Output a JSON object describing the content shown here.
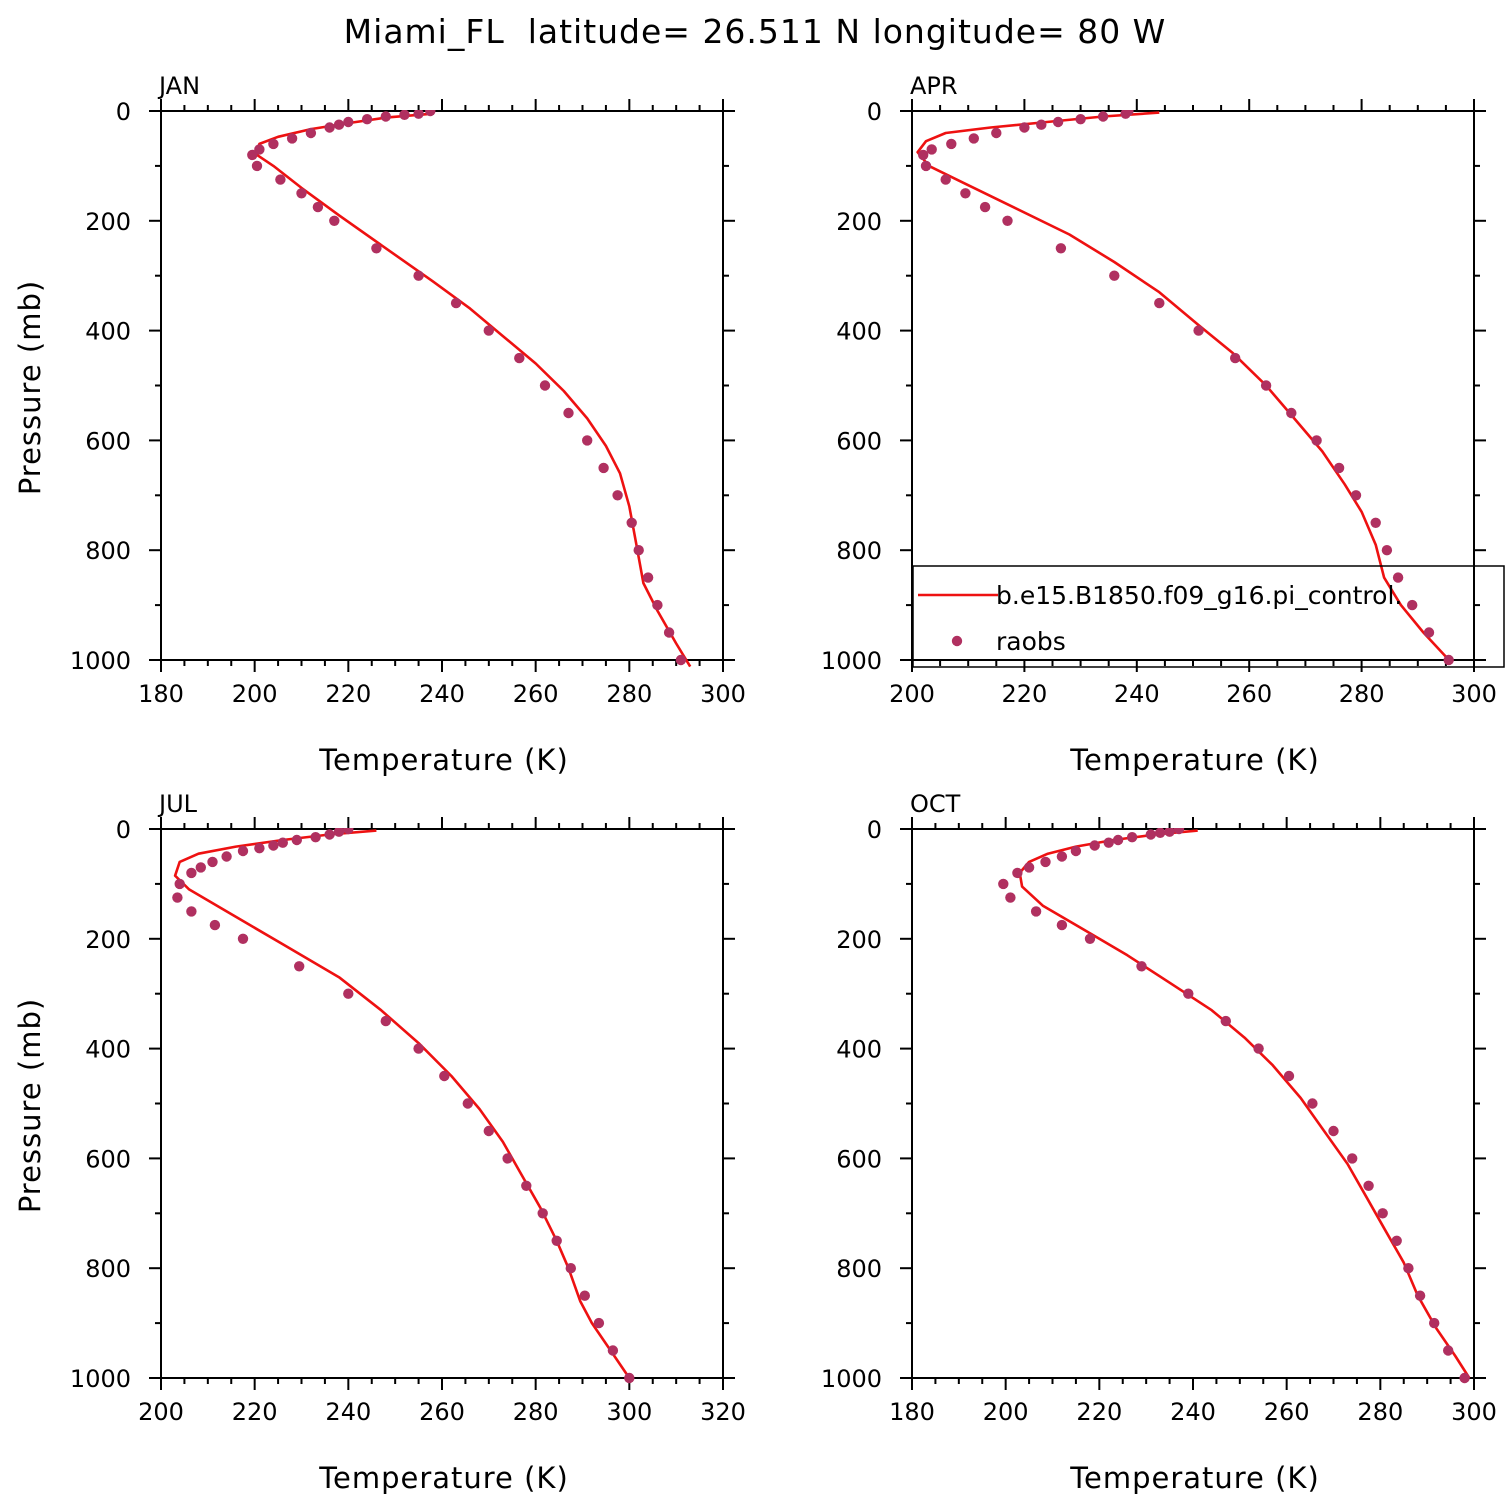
{
  "page": {
    "title": "Miami_FL  latitude= 26.511 N longitude= 80 W"
  },
  "colors": {
    "model_line": "#ee1111",
    "obs_marker": "#b03060",
    "axis": "#000000"
  },
  "legend": {
    "model_label": "b.e15.B1850.f09_g16.pi_control.",
    "obs_label": "raobs"
  },
  "chart_data": [
    {
      "type": "line",
      "panel": "JAN",
      "xlabel": "Temperature (K)",
      "ylabel": "Pressure (mb)",
      "xlim": [
        180,
        300
      ],
      "ylim": [
        1000,
        0
      ],
      "xticks": [
        180,
        200,
        220,
        240,
        260,
        280,
        300
      ],
      "yticks": [
        0,
        200,
        400,
        600,
        800,
        1000
      ],
      "grid": false,
      "series": [
        {
          "name": "b.e15.B1850.f09_g16.pi_control.",
          "kind": "line",
          "points": [
            [
              238,
              5
            ],
            [
              228,
              12
            ],
            [
              220,
              22
            ],
            [
              212,
              33
            ],
            [
              205,
              47
            ],
            [
              201,
              60
            ],
            [
              200.5,
              80
            ],
            [
              204,
              100
            ],
            [
              210,
              140
            ],
            [
              218,
              190
            ],
            [
              228,
              250
            ],
            [
              238,
              310
            ],
            [
              246,
              360
            ],
            [
              253,
              410
            ],
            [
              260,
              460
            ],
            [
              266,
              510
            ],
            [
              271,
              560
            ],
            [
              275,
              610
            ],
            [
              278,
              660
            ],
            [
              280,
              720
            ],
            [
              281.5,
              790
            ],
            [
              283,
              860
            ],
            [
              286,
              910
            ],
            [
              290,
              970
            ],
            [
              293,
              1012
            ]
          ]
        },
        {
          "name": "raobs",
          "kind": "scatter",
          "points": [
            [
              237.5,
              0
            ],
            [
              235,
              5
            ],
            [
              232,
              7
            ],
            [
              228,
              10
            ],
            [
              224,
              15
            ],
            [
              220,
              20
            ],
            [
              218,
              25
            ],
            [
              216,
              30
            ],
            [
              212,
              40
            ],
            [
              208,
              50
            ],
            [
              204,
              60
            ],
            [
              201,
              70
            ],
            [
              199.5,
              80
            ],
            [
              200.5,
              100
            ],
            [
              205.5,
              125
            ],
            [
              210,
              150
            ],
            [
              213.5,
              175
            ],
            [
              217,
              200
            ],
            [
              226,
              250
            ],
            [
              235,
              300
            ],
            [
              243,
              350
            ],
            [
              250,
              400
            ],
            [
              256.5,
              450
            ],
            [
              262,
              500
            ],
            [
              267,
              550
            ],
            [
              271,
              600
            ],
            [
              274.5,
              650
            ],
            [
              277.5,
              700
            ],
            [
              280.5,
              750
            ],
            [
              282,
              800
            ],
            [
              284,
              850
            ],
            [
              286,
              900
            ],
            [
              288.5,
              950
            ],
            [
              291,
              1000
            ]
          ]
        }
      ]
    },
    {
      "type": "line",
      "panel": "APR",
      "xlabel": "Temperature (K)",
      "ylabel": "",
      "xlim": [
        200,
        300
      ],
      "ylim": [
        1000,
        0
      ],
      "xticks": [
        200,
        220,
        240,
        260,
        280,
        300
      ],
      "yticks": [
        0,
        200,
        400,
        600,
        800,
        1000
      ],
      "grid": false,
      "legend": "bottom-right",
      "series": [
        {
          "name": "b.e15.B1850.f09_g16.pi_control.",
          "kind": "line",
          "points": [
            [
              244,
              3
            ],
            [
              234,
              10
            ],
            [
              224,
              20
            ],
            [
              214,
              30
            ],
            [
              206,
              40
            ],
            [
              202.5,
              55
            ],
            [
              201,
              75
            ],
            [
              203,
              100
            ],
            [
              209,
              130
            ],
            [
              218,
              175
            ],
            [
              228,
              225
            ],
            [
              236,
              275
            ],
            [
              244,
              330
            ],
            [
              251,
              390
            ],
            [
              257,
              440
            ],
            [
              263,
              500
            ],
            [
              268,
              560
            ],
            [
              273,
              620
            ],
            [
              277,
              680
            ],
            [
              280,
              730
            ],
            [
              282.5,
              790
            ],
            [
              284,
              850
            ],
            [
              287,
              900
            ],
            [
              291,
              950
            ],
            [
              296,
              1005
            ]
          ]
        },
        {
          "name": "raobs",
          "kind": "scatter",
          "points": [
            [
              238.5,
              0
            ],
            [
              238,
              5
            ],
            [
              234,
              10
            ],
            [
              230,
              15
            ],
            [
              226,
              20
            ],
            [
              223,
              25
            ],
            [
              220,
              30
            ],
            [
              215,
              40
            ],
            [
              211,
              50
            ],
            [
              207,
              60
            ],
            [
              203.5,
              70
            ],
            [
              202,
              80
            ],
            [
              202.5,
              100
            ],
            [
              206,
              125
            ],
            [
              209.5,
              150
            ],
            [
              213,
              175
            ],
            [
              217,
              200
            ],
            [
              226.5,
              250
            ],
            [
              236,
              300
            ],
            [
              244,
              350
            ],
            [
              251,
              400
            ],
            [
              257.5,
              450
            ],
            [
              263,
              500
            ],
            [
              267.5,
              550
            ],
            [
              272,
              600
            ],
            [
              276,
              650
            ],
            [
              279,
              700
            ],
            [
              282.5,
              750
            ],
            [
              284.5,
              800
            ],
            [
              286.5,
              850
            ],
            [
              289,
              900
            ],
            [
              292,
              950
            ],
            [
              295.5,
              1000
            ]
          ]
        }
      ]
    },
    {
      "type": "line",
      "panel": "JUL",
      "xlabel": "Temperature (K)",
      "ylabel": "Pressure (mb)",
      "xlim": [
        200,
        320
      ],
      "ylim": [
        1000,
        0
      ],
      "xticks": [
        200,
        220,
        240,
        260,
        280,
        300,
        320
      ],
      "yticks": [
        0,
        200,
        400,
        600,
        800,
        1000
      ],
      "grid": false,
      "series": [
        {
          "name": "b.e15.B1850.f09_g16.pi_control.",
          "kind": "line",
          "points": [
            [
              246,
              3
            ],
            [
              236,
              10
            ],
            [
              226,
              20
            ],
            [
              216,
              32
            ],
            [
              208,
              45
            ],
            [
              204,
              60
            ],
            [
              203,
              85
            ],
            [
              206,
              110
            ],
            [
              214,
              150
            ],
            [
              226,
              210
            ],
            [
              238,
              270
            ],
            [
              247,
              330
            ],
            [
              255,
              390
            ],
            [
              262,
              450
            ],
            [
              268,
              510
            ],
            [
              273,
              570
            ],
            [
              277,
              630
            ],
            [
              281,
              690
            ],
            [
              284.5,
              750
            ],
            [
              287,
              800
            ],
            [
              289.5,
              860
            ],
            [
              292,
              900
            ],
            [
              296,
              950
            ],
            [
              300,
              1000
            ]
          ]
        },
        {
          "name": "raobs",
          "kind": "scatter",
          "points": [
            [
              240,
              0
            ],
            [
              238,
              5
            ],
            [
              236,
              10
            ],
            [
              233,
              15
            ],
            [
              229,
              20
            ],
            [
              226,
              25
            ],
            [
              224,
              30
            ],
            [
              221,
              35
            ],
            [
              217.5,
              40
            ],
            [
              214,
              50
            ],
            [
              211,
              60
            ],
            [
              208.5,
              70
            ],
            [
              206.5,
              80
            ],
            [
              204,
              100
            ],
            [
              203.5,
              125
            ],
            [
              206.5,
              150
            ],
            [
              211.5,
              175
            ],
            [
              217.5,
              200
            ],
            [
              229.5,
              250
            ],
            [
              240,
              300
            ],
            [
              248,
              350
            ],
            [
              255,
              400
            ],
            [
              260.5,
              450
            ],
            [
              265.5,
              500
            ],
            [
              270,
              550
            ],
            [
              274,
              600
            ],
            [
              278,
              650
            ],
            [
              281.5,
              700
            ],
            [
              284.5,
              750
            ],
            [
              287.5,
              800
            ],
            [
              290.5,
              850
            ],
            [
              293.5,
              900
            ],
            [
              296.5,
              950
            ],
            [
              300,
              1000
            ]
          ]
        }
      ]
    },
    {
      "type": "line",
      "panel": "OCT",
      "xlabel": "Temperature (K)",
      "ylabel": "",
      "xlim": [
        180,
        300
      ],
      "ylim": [
        1000,
        0
      ],
      "xticks": [
        180,
        200,
        220,
        240,
        260,
        280,
        300
      ],
      "yticks": [
        0,
        200,
        400,
        600,
        800,
        1000
      ],
      "grid": false,
      "series": [
        {
          "name": "b.e15.B1850.f09_g16.pi_control.",
          "kind": "line",
          "points": [
            [
              241,
              3
            ],
            [
              232,
              10
            ],
            [
              223,
              20
            ],
            [
              215,
              32
            ],
            [
              209,
              45
            ],
            [
              205,
              60
            ],
            [
              203,
              80
            ],
            [
              203.5,
              105
            ],
            [
              208,
              140
            ],
            [
              216,
              180
            ],
            [
              226,
              230
            ],
            [
              235,
              280
            ],
            [
              244,
              330
            ],
            [
              251,
              380
            ],
            [
              257,
              430
            ],
            [
              263,
              490
            ],
            [
              268,
              550
            ],
            [
              273,
              610
            ],
            [
              277,
              670
            ],
            [
              281,
              730
            ],
            [
              285,
              790
            ],
            [
              288,
              850
            ],
            [
              292,
              910
            ],
            [
              296,
              960
            ],
            [
              299,
              1000
            ]
          ]
        },
        {
          "name": "raobs",
          "kind": "scatter",
          "points": [
            [
              237,
              0
            ],
            [
              235,
              5
            ],
            [
              233,
              7
            ],
            [
              231,
              10
            ],
            [
              227,
              15
            ],
            [
              224,
              20
            ],
            [
              222,
              25
            ],
            [
              219,
              30
            ],
            [
              215,
              40
            ],
            [
              212,
              50
            ],
            [
              208.5,
              60
            ],
            [
              205,
              70
            ],
            [
              202.5,
              80
            ],
            [
              199.5,
              100
            ],
            [
              201,
              125
            ],
            [
              206.5,
              150
            ],
            [
              212,
              175
            ],
            [
              218,
              200
            ],
            [
              229,
              250
            ],
            [
              239,
              300
            ],
            [
              247,
              350
            ],
            [
              254,
              400
            ],
            [
              260.5,
              450
            ],
            [
              265.5,
              500
            ],
            [
              270,
              550
            ],
            [
              274,
              600
            ],
            [
              277.5,
              650
            ],
            [
              280.5,
              700
            ],
            [
              283.5,
              750
            ],
            [
              286,
              800
            ],
            [
              288.5,
              850
            ],
            [
              291.5,
              900
            ],
            [
              294.5,
              950
            ],
            [
              298,
              1000
            ]
          ]
        }
      ]
    }
  ]
}
